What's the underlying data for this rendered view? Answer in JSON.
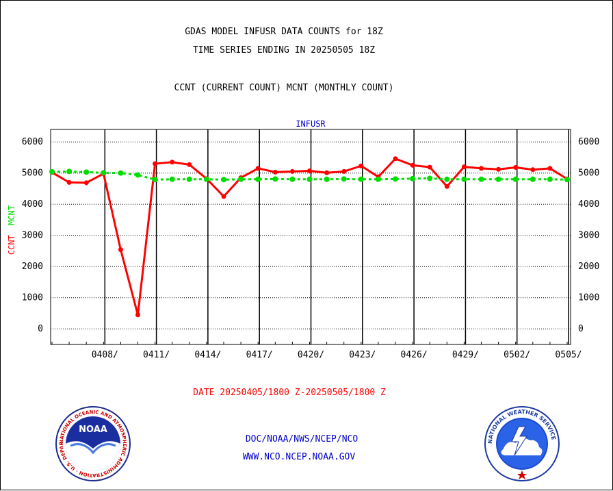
{
  "header": {
    "line1": "GDAS MODEL INFUSR DATA COUNTS for 18Z",
    "line2": "TIME SERIES ENDING IN 20250505 18Z",
    "line3": "CCNT (CURRENT COUNT) MCNT (MONTHLY COUNT)"
  },
  "footer": {
    "date_range": "DATE 20250405/1800 Z-20250505/1800 Z",
    "org": "DOC/NOAA/NWS/NCEP/NCO",
    "url": "WWW.NCO.NCEP.NOAA.GOV"
  },
  "logos": {
    "noaa": {
      "text": "NOAA",
      "ring_text": "NATIONAL OCEANIC AND ATMOSPHERIC ADMINISTRATION · U.S. DEPARTMENT OF COMMERCE"
    },
    "nws": {
      "ring_text": "NATIONAL WEATHER SERVICE"
    }
  },
  "colors": {
    "ccnt": "#ff0000",
    "mcnt": "#00dd00",
    "title": "#0000cc",
    "footer_date": "#ff0000",
    "footer_links": "#0000cc"
  },
  "chart_data": {
    "type": "line",
    "title": "INFUSR",
    "ylabel_ccnt": "CCNT",
    "ylabel_mcnt": "MCNT",
    "ylim": [
      -500,
      6400
    ],
    "yticks": [
      0,
      1000,
      2000,
      3000,
      4000,
      5000,
      6000
    ],
    "x_tick_labels": [
      "0408/",
      "0411/",
      "0414/",
      "0417/",
      "0420/",
      "0423/",
      "0426/",
      "0429/",
      "0502/",
      "0505/"
    ],
    "grid": true,
    "x": [
      "0405",
      "0406",
      "0407",
      "0408",
      "0409",
      "0410",
      "0411",
      "0412",
      "0413",
      "0414",
      "0415",
      "0416",
      "0417",
      "0418",
      "0419",
      "0420",
      "0421",
      "0422",
      "0423",
      "0424",
      "0425",
      "0426",
      "0427",
      "0428",
      "0429",
      "0430",
      "0501",
      "0502",
      "0503",
      "0504",
      "0505"
    ],
    "series": [
      {
        "name": "CCNT",
        "color": "#ff0000",
        "values": [
          5020,
          4700,
          4690,
          4980,
          2540,
          450,
          5300,
          5350,
          5270,
          4820,
          4250,
          4850,
          5150,
          5030,
          5050,
          5070,
          5010,
          5050,
          5230,
          4880,
          5460,
          5250,
          5190,
          4570,
          5200,
          5150,
          5120,
          5180,
          5110,
          5150,
          4810
        ]
      },
      {
        "name": "MCNT",
        "color": "#00dd00",
        "values": [
          5040,
          5050,
          5030,
          5010,
          5000,
          4940,
          4790,
          4800,
          4800,
          4800,
          4790,
          4800,
          4800,
          4810,
          4800,
          4800,
          4800,
          4810,
          4800,
          4800,
          4810,
          4820,
          4830,
          4800,
          4800,
          4800,
          4800,
          4800,
          4800,
          4800,
          4790
        ]
      }
    ]
  }
}
